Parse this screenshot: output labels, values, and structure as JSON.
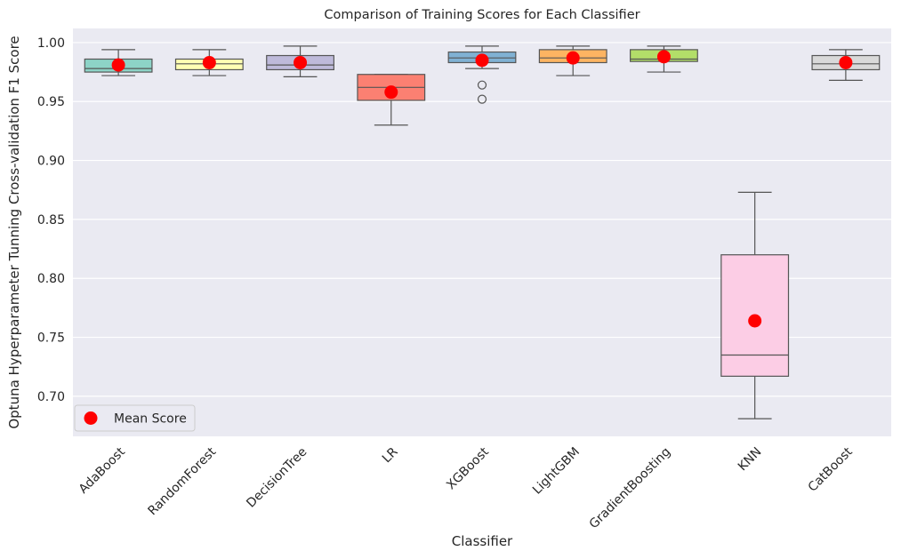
{
  "chart_data": {
    "type": "box",
    "title": "Comparison of Training Scores for Each Classifier",
    "xlabel": "Classifier",
    "ylabel": "Optuna Hyperparameter Tunning Cross-validation F1 Score",
    "ylim": [
      0.666,
      1.012
    ],
    "yticks": [
      "0.70",
      "0.75",
      "0.80",
      "0.85",
      "0.90",
      "0.95",
      "1.00"
    ],
    "grid": true,
    "legend": {
      "placement": "bottom-left",
      "label": "Mean Score",
      "color": "#ff0000"
    },
    "background": "#eaeaf2",
    "categories": [
      "AdaBoost",
      "RandomForest",
      "DecisionTree",
      "LR",
      "XGBoost",
      "LightGBM",
      "GradientBoosting",
      "KNN",
      "CatBoost"
    ],
    "boxes": [
      {
        "name": "AdaBoost",
        "whisker_low": 0.972,
        "q1": 0.975,
        "median": 0.978,
        "q3": 0.986,
        "whisker_high": 0.994,
        "mean": 0.981,
        "outliers": [],
        "color": "#8dd3c7"
      },
      {
        "name": "RandomForest",
        "whisker_low": 0.972,
        "q1": 0.977,
        "median": 0.982,
        "q3": 0.986,
        "whisker_high": 0.994,
        "mean": 0.983,
        "outliers": [],
        "color": "#ffffb3"
      },
      {
        "name": "DecisionTree",
        "whisker_low": 0.971,
        "q1": 0.977,
        "median": 0.981,
        "q3": 0.989,
        "whisker_high": 0.997,
        "mean": 0.983,
        "outliers": [],
        "color": "#bebada"
      },
      {
        "name": "LR",
        "whisker_low": 0.93,
        "q1": 0.951,
        "median": 0.962,
        "q3": 0.973,
        "whisker_high": 0.973,
        "mean": 0.958,
        "outliers": [],
        "color": "#fb8072"
      },
      {
        "name": "XGBoost",
        "whisker_low": 0.978,
        "q1": 0.983,
        "median": 0.987,
        "q3": 0.992,
        "whisker_high": 0.997,
        "mean": 0.985,
        "outliers": [
          0.964,
          0.952
        ],
        "color": "#80b1d3"
      },
      {
        "name": "LightGBM",
        "whisker_low": 0.972,
        "q1": 0.983,
        "median": 0.987,
        "q3": 0.994,
        "whisker_high": 0.997,
        "mean": 0.987,
        "outliers": [],
        "color": "#fdb462"
      },
      {
        "name": "GradientBoosting",
        "whisker_low": 0.975,
        "q1": 0.984,
        "median": 0.986,
        "q3": 0.994,
        "whisker_high": 0.997,
        "mean": 0.988,
        "outliers": [],
        "color": "#b3de69"
      },
      {
        "name": "KNN",
        "whisker_low": 0.681,
        "q1": 0.717,
        "median": 0.735,
        "q3": 0.82,
        "whisker_high": 0.873,
        "mean": 0.764,
        "outliers": [],
        "color": "#fccde5"
      },
      {
        "name": "CatBoost",
        "whisker_low": 0.968,
        "q1": 0.977,
        "median": 0.982,
        "q3": 0.989,
        "whisker_high": 0.994,
        "mean": 0.983,
        "outliers": [],
        "color": "#d9d9d9"
      }
    ]
  }
}
